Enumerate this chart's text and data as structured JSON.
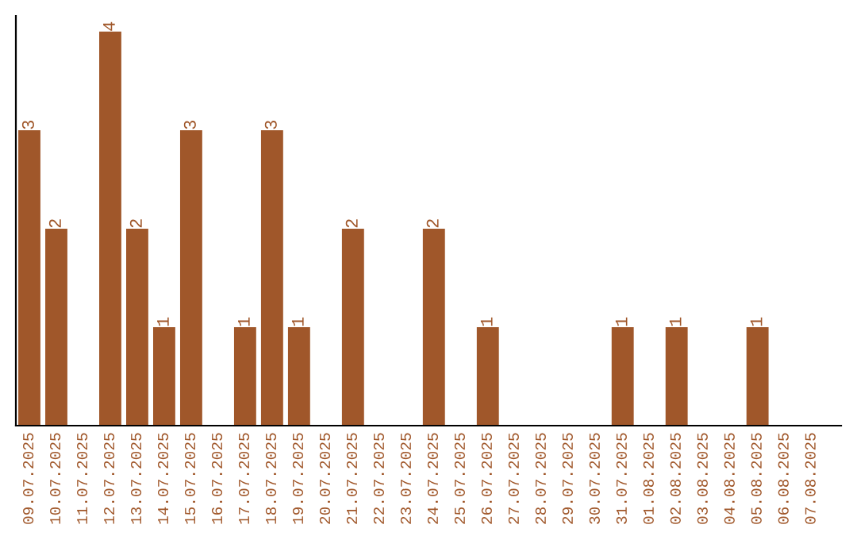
{
  "chart_data": {
    "type": "bar",
    "categories": [
      "09.07.2025",
      "10.07.2025",
      "11.07.2025",
      "12.07.2025",
      "13.07.2025",
      "14.07.2025",
      "15.07.2025",
      "16.07.2025",
      "17.07.2025",
      "18.07.2025",
      "19.07.2025",
      "20.07.2025",
      "21.07.2025",
      "22.07.2025",
      "23.07.2025",
      "24.07.2025",
      "25.07.2025",
      "26.07.2025",
      "27.07.2025",
      "28.07.2025",
      "29.07.2025",
      "30.07.2025",
      "31.07.2025",
      "01.08.2025",
      "02.08.2025",
      "03.08.2025",
      "04.08.2025",
      "05.08.2025",
      "06.08.2025",
      "07.08.2025"
    ],
    "values": [
      3,
      2,
      0,
      4,
      2,
      1,
      3,
      0,
      1,
      3,
      1,
      0,
      2,
      0,
      0,
      2,
      0,
      1,
      0,
      0,
      0,
      0,
      1,
      0,
      1,
      0,
      0,
      1,
      0,
      0
    ],
    "value_labels": [
      "3",
      "2",
      null,
      "4",
      "2",
      "1",
      "3",
      null,
      "1",
      "3",
      "1",
      null,
      "2",
      null,
      null,
      "2",
      null,
      "1",
      null,
      null,
      null,
      null,
      "1",
      null,
      "1",
      null,
      null,
      "1",
      null,
      null
    ],
    "color": "#a0572a",
    "ylim": [
      0,
      4.16
    ],
    "tick_labels": "x",
    "grid": false,
    "legend": false
  }
}
